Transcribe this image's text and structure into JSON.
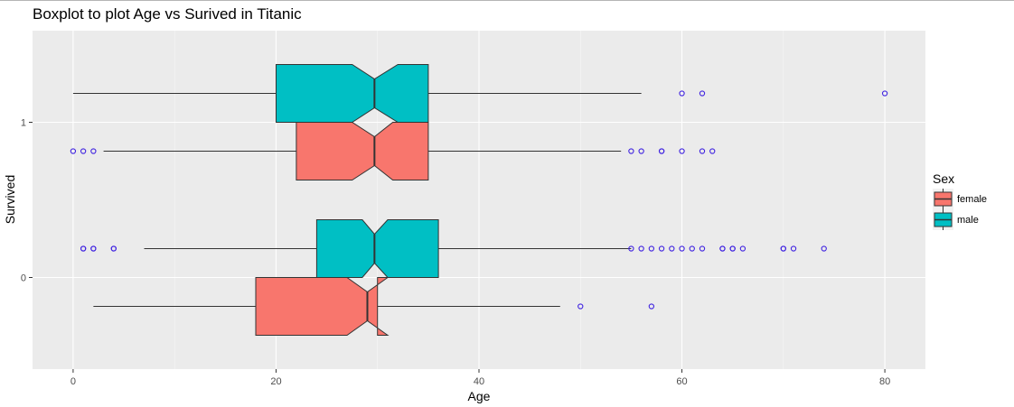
{
  "chart_data": {
    "type": "boxplot",
    "title": "Boxplot to plot Age vs Surived in Titanic",
    "xlabel": "Age",
    "ylabel": "Survived",
    "xlim": [
      -4,
      84
    ],
    "x_ticks": [
      0,
      20,
      40,
      60,
      80
    ],
    "y_ticks": [
      "0",
      "1"
    ],
    "grid": true,
    "orientation": "horizontal",
    "notched": true,
    "legend": {
      "title": "Sex",
      "position": "right",
      "entries": [
        {
          "label": "female",
          "color": "#F8766D"
        },
        {
          "label": "male",
          "color": "#00BFC4"
        }
      ]
    },
    "groups": [
      {
        "survived": "1",
        "sex": "male",
        "whisker_low": 0,
        "q1": 20,
        "median": 29.7,
        "q3": 35,
        "whisker_high": 56,
        "notch_low": 27.5,
        "notch_high": 32,
        "outliers": [
          60,
          62,
          80
        ]
      },
      {
        "survived": "1",
        "sex": "female",
        "whisker_low": 3,
        "q1": 22,
        "median": 29.7,
        "q3": 35,
        "whisker_high": 54,
        "notch_low": 27.5,
        "notch_high": 31.5,
        "outliers": [
          0,
          1,
          2,
          55,
          56,
          58,
          58,
          60,
          62,
          63
        ]
      },
      {
        "survived": "0",
        "sex": "male",
        "whisker_low": 7,
        "q1": 24,
        "median": 29.7,
        "q3": 36,
        "whisker_high": 55,
        "notch_low": 28.5,
        "notch_high": 31,
        "outliers": [
          1,
          1,
          2,
          2,
          4,
          4,
          55,
          56,
          57,
          58,
          59,
          60,
          61,
          62,
          64,
          64,
          65,
          65,
          66,
          70,
          70,
          71,
          74
        ]
      },
      {
        "survived": "0",
        "sex": "female",
        "whisker_low": 2,
        "q1": 18,
        "median": 29,
        "q3": 30,
        "whisker_high": 48,
        "notch_low": 27,
        "notch_high": 31,
        "outliers": [
          50,
          57
        ]
      }
    ],
    "colors": {
      "panel": "#EBEBEB",
      "grid_major": "#FFFFFF",
      "outlier": "#3F22E0",
      "box_stroke": "#333333"
    }
  }
}
